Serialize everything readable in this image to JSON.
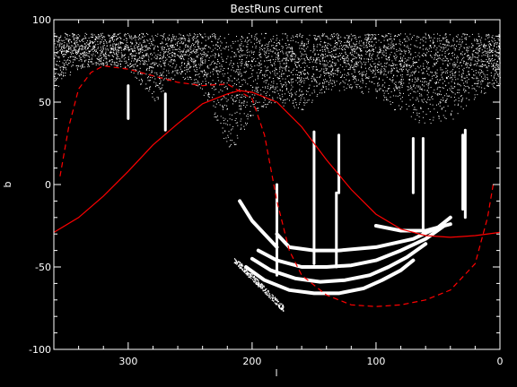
{
  "chart_data": {
    "type": "scatter",
    "title": "BestRuns current",
    "xlabel": "l",
    "ylabel": "b",
    "xlim": [
      360,
      0
    ],
    "ylim": [
      -100,
      100
    ],
    "x_ticks": [
      300,
      200,
      100,
      0
    ],
    "y_ticks": [
      100,
      50,
      0,
      -50,
      -100
    ],
    "grid": false,
    "colors": {
      "background": "#000000",
      "points": "#ffffff",
      "curves": "#ff0000",
      "axes": "#ffffff"
    },
    "series": [
      {
        "style": "red-solid-curve",
        "x": [
          360,
          340,
          320,
          300,
          280,
          260,
          240,
          220,
          210,
          200,
          180,
          160,
          140,
          120,
          100,
          80,
          60,
          40,
          20,
          0
        ],
        "y": [
          -29,
          -20,
          -7,
          8,
          24,
          37,
          49,
          55,
          57,
          56,
          50,
          35,
          15,
          -3,
          -18,
          -27,
          -31,
          -32,
          -31,
          -29
        ]
      },
      {
        "style": "red-dashed-curve",
        "x": [
          355,
          348,
          340,
          330,
          320,
          300,
          280,
          260,
          240,
          220,
          200,
          190,
          180,
          170,
          160,
          140,
          120,
          100,
          80,
          60,
          40,
          20,
          10,
          5
        ],
        "y": [
          5,
          35,
          58,
          68,
          72,
          70,
          66,
          62,
          60,
          61,
          52,
          30,
          -10,
          -40,
          -55,
          -67,
          -73,
          -74,
          -73,
          -70,
          -64,
          -48,
          -20,
          2
        ]
      }
    ],
    "scatter_bands": [
      {
        "l": [
          180,
          170,
          150,
          130,
          100,
          70,
          50,
          40
        ],
        "b": [
          -30,
          -38,
          -40,
          -40,
          -38,
          -33,
          -26,
          -20
        ]
      },
      {
        "l": [
          195,
          180,
          160,
          140,
          120,
          100,
          80,
          60,
          45
        ],
        "b": [
          -40,
          -46,
          -50,
          -50,
          -49,
          -46,
          -40,
          -33,
          -25
        ]
      },
      {
        "l": [
          200,
          185,
          165,
          145,
          125,
          105,
          90,
          75,
          60
        ],
        "b": [
          -45,
          -52,
          -57,
          -59,
          -58,
          -55,
          -50,
          -44,
          -36
        ]
      },
      {
        "l": [
          205,
          190,
          170,
          150,
          130,
          110,
          95,
          80,
          70
        ],
        "b": [
          -50,
          -58,
          -64,
          -66,
          -66,
          -63,
          -58,
          -52,
          -46
        ]
      },
      {
        "l": [
          100,
          80,
          60,
          40
        ],
        "b": [
          -25,
          -28,
          -28,
          -24
        ]
      },
      {
        "l": [
          210,
          200,
          190,
          180
        ],
        "b": [
          -10,
          -22,
          -30,
          -38
        ]
      }
    ],
    "streaks": [
      {
        "l": 300,
        "b": [
          40,
          60
        ]
      },
      {
        "l": 270,
        "b": [
          33,
          55
        ]
      },
      {
        "l": 180,
        "b": [
          -55,
          0
        ]
      },
      {
        "l": 150,
        "b": [
          -48,
          32
        ]
      },
      {
        "l": 132,
        "b": [
          -50,
          -5
        ]
      },
      {
        "l": 130,
        "b": [
          -5,
          30
        ]
      },
      {
        "l": 70,
        "b": [
          -5,
          28
        ]
      },
      {
        "l": 62,
        "b": [
          -30,
          28
        ]
      },
      {
        "l": 30,
        "b": [
          -15,
          30
        ]
      },
      {
        "l": 28,
        "b": [
          -20,
          33
        ]
      }
    ]
  }
}
